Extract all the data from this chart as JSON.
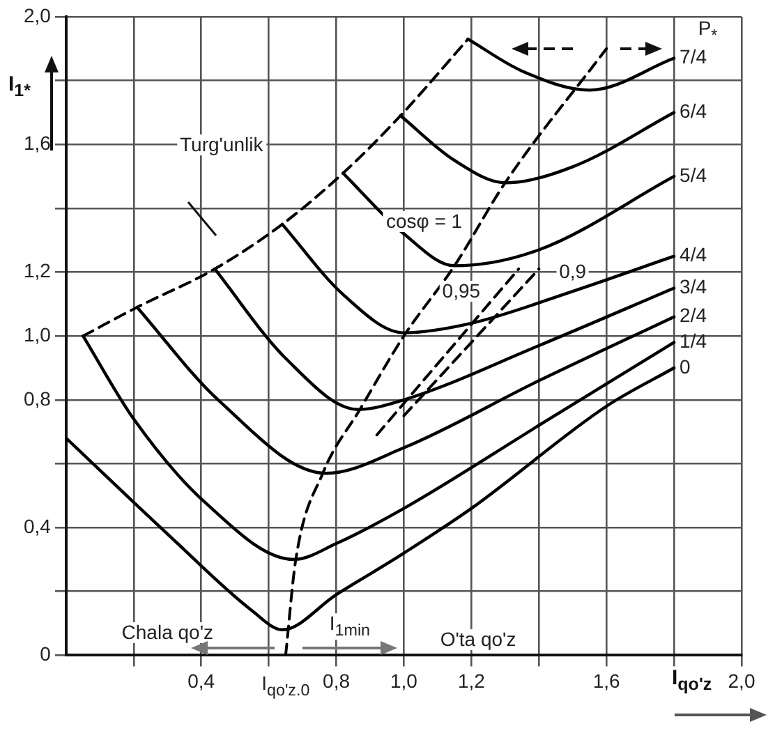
{
  "chart_data": {
    "type": "line",
    "xlabel": "I$_{qo'z}$",
    "ylabel": "I$_{1*}$",
    "xlim": [
      0,
      2.0
    ],
    "ylim": [
      0,
      2.0
    ],
    "xticks": [
      {
        "value": 0.2,
        "label": null
      },
      {
        "value": 0.4,
        "label": "0,4"
      },
      {
        "value": 0.6,
        "label": null
      },
      {
        "value": 0.8,
        "label": "0,8"
      },
      {
        "value": 1.0,
        "label": "1,0"
      },
      {
        "value": 1.2,
        "label": "1,2"
      },
      {
        "value": 1.4,
        "label": null
      },
      {
        "value": 1.6,
        "label": "1,6"
      },
      {
        "value": 1.8,
        "label": null
      },
      {
        "value": 2.0,
        "label": "2,0"
      }
    ],
    "yticks": [
      0,
      {
        "value": 0.2,
        "label": null
      },
      {
        "value": 0.4,
        "label": "0,4"
      },
      {
        "value": 0.6,
        "label": null
      },
      {
        "value": 0.8,
        "label": "0,8"
      },
      {
        "value": 1.0,
        "label": "1,0"
      },
      {
        "value": 1.2,
        "label": "1,2"
      },
      {
        "value": 1.4,
        "label": null
      },
      {
        "value": 1.6,
        "label": "1,6"
      },
      {
        "value": 1.8,
        "label": null
      },
      {
        "value": 2.0,
        "label": "2,0"
      }
    ],
    "grid": true,
    "series": [
      {
        "name": "0",
        "color": "#000000",
        "x": [
          0,
          0.3,
          0.55,
          0.64,
          0.8,
          1.0,
          1.2,
          1.6,
          1.8
        ],
        "values": [
          0.68,
          0.38,
          0.14,
          0.08,
          0.19,
          0.32,
          0.46,
          0.78,
          0.9
        ]
      },
      {
        "name": "1/4",
        "color": "#000000",
        "x": [
          0.05,
          0.2,
          0.41,
          0.675,
          0.8,
          1.0,
          1.4,
          1.8
        ],
        "values": [
          1.0,
          0.74,
          0.48,
          0.3,
          0.35,
          0.46,
          0.72,
          0.98
        ]
      },
      {
        "name": "2/4",
        "color": "#000000",
        "x": [
          0.21,
          0.45,
          0.77,
          1.0,
          1.4,
          1.8
        ],
        "values": [
          1.09,
          0.8,
          0.57,
          0.65,
          0.86,
          1.06
        ]
      },
      {
        "name": "3/4",
        "color": "#000000",
        "x": [
          0.44,
          0.65,
          0.865,
          1.0,
          1.4,
          1.8
        ],
        "values": [
          1.21,
          0.93,
          0.77,
          0.8,
          0.97,
          1.15
        ]
      },
      {
        "name": "4/4",
        "color": "#000000",
        "x": [
          0.64,
          0.82,
          1.0,
          1.2,
          1.5,
          1.8
        ],
        "values": [
          1.35,
          1.13,
          1.01,
          1.04,
          1.14,
          1.25
        ]
      },
      {
        "name": "5/4",
        "color": "#000000",
        "x": [
          0.82,
          1.0,
          1.15,
          1.4,
          1.8
        ],
        "values": [
          1.51,
          1.32,
          1.22,
          1.27,
          1.5
        ]
      },
      {
        "name": "6/4",
        "color": "#000000",
        "x": [
          0.99,
          1.15,
          1.3,
          1.5,
          1.8
        ],
        "values": [
          1.69,
          1.55,
          1.48,
          1.53,
          1.7
        ]
      },
      {
        "name": "7/4",
        "color": "#000000",
        "x": [
          1.19,
          1.35,
          1.55,
          1.8
        ],
        "values": [
          1.93,
          1.83,
          1.77,
          1.87
        ]
      },
      {
        "color": "#000000",
        "line_style": "dashed",
        "x": [
          0.05,
          0.21,
          0.44,
          0.64,
          0.82,
          0.99,
          1.19
        ],
        "values": [
          1.0,
          1.09,
          1.21,
          1.35,
          1.51,
          1.69,
          1.93
        ]
      },
      {
        "color": "#000000",
        "line_style": "dashed",
        "x": [
          0.65,
          0.68,
          0.76,
          0.87,
          1.0,
          1.15,
          1.3,
          1.6
        ],
        "values": [
          0.0,
          0.3,
          0.57,
          0.77,
          1.0,
          1.22,
          1.48,
          1.9
        ]
      },
      {
        "color": "#000000",
        "line_style": "dashed",
        "x": [
          0.92,
          1.34
        ],
        "values": [
          0.69,
          1.21
        ]
      },
      {
        "color": "#000000",
        "line_style": "dashed",
        "x": [
          1.0,
          1.4
        ],
        "values": [
          0.75,
          1.21
        ]
      }
    ],
    "annotations": [
      "Turg'unlik",
      "cosφ = 1",
      "0,95",
      "0,9",
      "P$_{*}$",
      "Chala qo'z",
      "O'ta qo'z",
      "I$_{1min}$",
      "I$_{qo'z.0}$"
    ]
  }
}
